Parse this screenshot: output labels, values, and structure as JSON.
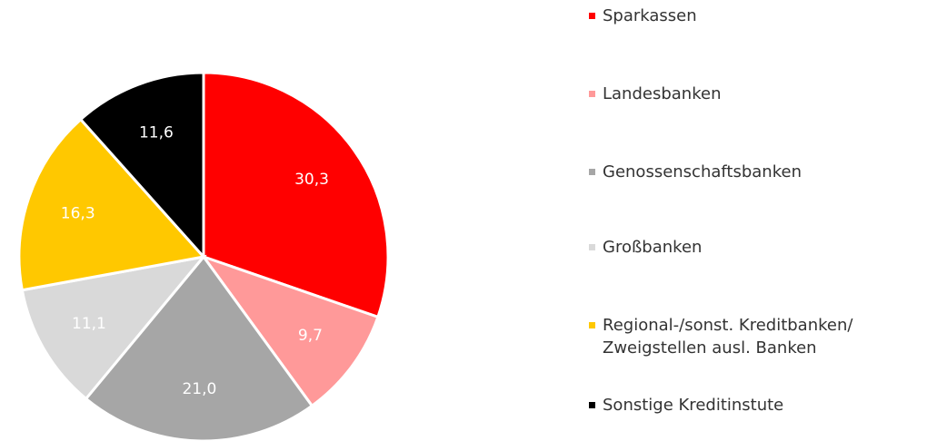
{
  "chart_data": {
    "type": "pie",
    "categories": [
      "Sparkassen",
      "Landesbanken",
      "Genossenschaftsbanken",
      "Großbanken",
      "Regional-/sonst. Kreditbanken/ Zweigstellen ausl. Banken",
      "Sonstige Kreditinstute"
    ],
    "values": [
      30.3,
      9.7,
      21.0,
      11.1,
      16.3,
      11.6
    ],
    "value_labels": [
      "30,3",
      "9,7",
      "21,0",
      "11,1",
      "16,3",
      "11,6"
    ],
    "colors": [
      "#ff0000",
      "#ff9999",
      "#a6a6a6",
      "#d9d9d9",
      "#ffc800",
      "#000000"
    ],
    "legend": "right"
  }
}
